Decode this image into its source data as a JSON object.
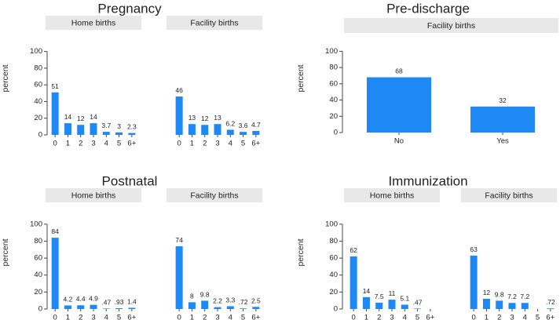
{
  "colors": {
    "bar": "#1e88f5",
    "strip_bg": "#e8e8e8",
    "axis": "#444444",
    "text": "#222222"
  },
  "chart_data": [
    {
      "type": "bar",
      "title": "Pregnancy",
      "ylabel": "percent",
      "ylim": [
        0,
        110
      ],
      "yticks": [
        0,
        20,
        40,
        60,
        80,
        100
      ],
      "categories": [
        "0",
        "1",
        "2",
        "3",
        "4",
        "5",
        "6+"
      ],
      "series": [
        {
          "name": "Home births",
          "values": [
            51,
            14,
            12,
            14,
            3.7,
            3,
            2.3
          ],
          "labels": [
            "51",
            "14",
            "12",
            "14",
            "3.7",
            "3",
            "2.3"
          ]
        },
        {
          "name": "Facility births",
          "values": [
            46,
            13,
            12,
            13,
            6.2,
            3.6,
            4.7
          ],
          "labels": [
            "46",
            "13",
            "12",
            "13",
            "6.2",
            "3.6",
            "4.7"
          ]
        }
      ]
    },
    {
      "type": "bar",
      "title": "Pre-discharge",
      "ylabel": "percent",
      "ylim": [
        0,
        110
      ],
      "yticks": [
        0,
        20,
        40,
        60,
        80,
        100
      ],
      "categories": [
        "No",
        "Yes"
      ],
      "series": [
        {
          "name": "Facility births",
          "values": [
            68,
            32
          ],
          "labels": [
            "68",
            "32"
          ]
        }
      ]
    },
    {
      "type": "bar",
      "title": "Postnatal",
      "ylabel": "percent",
      "ylim": [
        0,
        110
      ],
      "yticks": [
        0,
        20,
        40,
        60,
        80,
        100
      ],
      "categories": [
        "0",
        "1",
        "2",
        "3",
        "4",
        "5",
        "6+"
      ],
      "series": [
        {
          "name": "Home births",
          "values": [
            84,
            4.2,
            4.4,
            4.9,
            0.47,
            0.93,
            1.4
          ],
          "labels": [
            "84",
            "4.2",
            "4.4",
            "4.9",
            ".47",
            ".93",
            "1.4"
          ]
        },
        {
          "name": "Facility births",
          "values": [
            74,
            8,
            9.8,
            2.2,
            3.3,
            0.72,
            2.5
          ],
          "labels": [
            "74",
            "8",
            "9.8",
            "2.2",
            "3.3",
            ".72",
            "2.5"
          ]
        }
      ]
    },
    {
      "type": "bar",
      "title": "Immunization",
      "ylabel": "percent",
      "ylim": [
        0,
        110
      ],
      "yticks": [
        0,
        20,
        40,
        60,
        80,
        100
      ],
      "categories": [
        "0",
        "1",
        "2",
        "3",
        "4",
        "5",
        "6+"
      ],
      "series": [
        {
          "name": "Home births",
          "values": [
            62,
            14,
            7.5,
            11,
            5.1,
            0.47,
            null
          ],
          "labels": [
            "62",
            "14",
            "7.5",
            "11",
            "5.1",
            ".47",
            ""
          ]
        },
        {
          "name": "Facility births",
          "values": [
            63,
            12,
            9.8,
            7.2,
            7.2,
            null,
            0.72
          ],
          "labels": [
            "63",
            "12",
            "9.8",
            "7.2",
            "7.2",
            "",
            ".72"
          ]
        }
      ]
    }
  ]
}
